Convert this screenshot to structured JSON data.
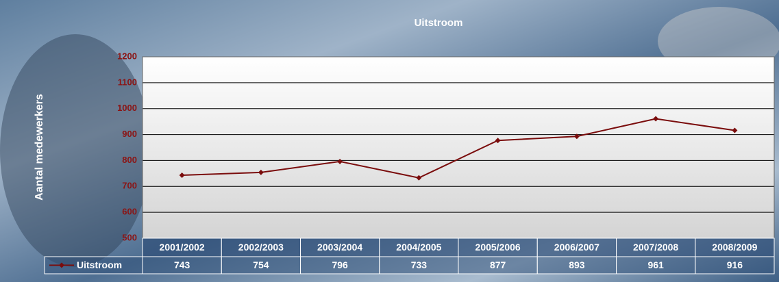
{
  "chart_data": {
    "type": "line",
    "title": "Uitstroom",
    "y_label": "Aantal medewerkers",
    "categories": [
      "2001/2002",
      "2002/2003",
      "2003/2004",
      "2004/2005",
      "2005/2006",
      "2006/2007",
      "2007/2008",
      "2008/2009"
    ],
    "series": [
      {
        "name": "Uitstroom",
        "color": "#7a0c0c",
        "values": [
          743,
          754,
          796,
          733,
          877,
          893,
          961,
          916
        ]
      }
    ],
    "ylim": [
      500,
      1200
    ],
    "yticks": [
      500,
      600,
      700,
      800,
      900,
      1000,
      1100,
      1200
    ],
    "grid": true,
    "data_table": true
  }
}
